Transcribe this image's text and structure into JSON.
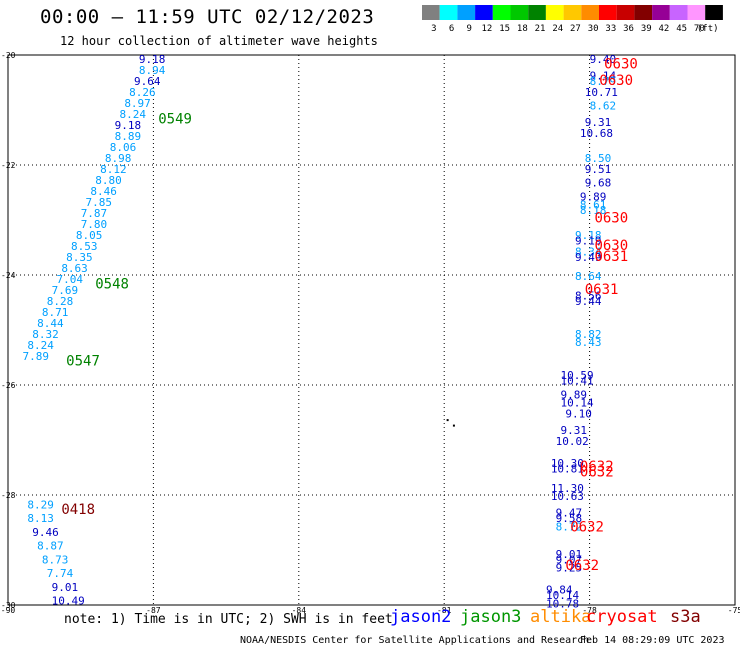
{
  "header": {
    "title": "00:00 – 11:59 UTC 02/12/2023",
    "subtitle": "12 hour collection of altimeter wave heights"
  },
  "legend": {
    "unit": "(ft)",
    "bins": [
      {
        "label": "3",
        "color": "#808080"
      },
      {
        "label": "6",
        "color": "#00ffff"
      },
      {
        "label": "9",
        "color": "#00a0ff"
      },
      {
        "label": "12",
        "color": "#0000ff"
      },
      {
        "label": "15",
        "color": "#00ff00"
      },
      {
        "label": "18",
        "color": "#00c800"
      },
      {
        "label": "21",
        "color": "#008200"
      },
      {
        "label": "24",
        "color": "#ffff00"
      },
      {
        "label": "27",
        "color": "#ffc800"
      },
      {
        "label": "30",
        "color": "#ff8c00"
      },
      {
        "label": "33",
        "color": "#ff0000"
      },
      {
        "label": "36",
        "color": "#c80000"
      },
      {
        "label": "39",
        "color": "#820000"
      },
      {
        "label": "42",
        "color": "#960096"
      },
      {
        "label": "45",
        "color": "#c864ff"
      },
      {
        "label": "70",
        "color": "#ff96ff"
      },
      {
        "label": "",
        "color": "#000000"
      }
    ]
  },
  "footer": {
    "note": "note: 1) Time is in UTC; 2) SWH is in feet",
    "credit": "NOAA/NESDIS Center for Satellite Applications and Research",
    "timestamp": "Feb 14 08:29:09 UTC 2023",
    "satellites": [
      {
        "name": "jason2",
        "color": "#0000ff"
      },
      {
        "name": "jason3",
        "color": "#009600"
      },
      {
        "name": "altika",
        "color": "#ff8c00"
      },
      {
        "name": "cryosat",
        "color": "#ff0000"
      },
      {
        "name": "s3a",
        "color": "#820000"
      }
    ]
  },
  "chart_data": {
    "type": "scatter",
    "xlim": [
      -90,
      -75
    ],
    "ylim": [
      -30,
      -20
    ],
    "xticks": [
      "-90",
      "-87",
      "-84",
      "-81",
      "-78",
      "-75"
    ],
    "yticks": [
      "-20",
      "-22",
      "-24",
      "-26",
      "-28",
      "-30"
    ],
    "grid": true,
    "colors": {
      "lblue": "#00a0ff",
      "dblue": "#0000c0",
      "green": "#008200",
      "red": "#ff0000",
      "maroon": "#820000",
      "black": "#000000"
    },
    "points": [
      {
        "x": -87.3,
        "y": -20.07,
        "v": "9.18",
        "c": "dblue"
      },
      {
        "x": -87.3,
        "y": -20.27,
        "v": "8.94",
        "c": "lblue"
      },
      {
        "x": -87.4,
        "y": -20.47,
        "v": "9.64",
        "c": "dblue"
      },
      {
        "x": -87.5,
        "y": -20.67,
        "v": "8.26",
        "c": "lblue"
      },
      {
        "x": -87.6,
        "y": -20.87,
        "v": "8.97",
        "c": "lblue"
      },
      {
        "x": -87.7,
        "y": -21.07,
        "v": "8.24",
        "c": "lblue"
      },
      {
        "x": -87.8,
        "y": -21.27,
        "v": "9.18",
        "c": "dblue"
      },
      {
        "x": -87.8,
        "y": -21.47,
        "v": "8.89",
        "c": "lblue"
      },
      {
        "x": -87.9,
        "y": -21.67,
        "v": "8.06",
        "c": "lblue"
      },
      {
        "x": -88.0,
        "y": -21.87,
        "v": "8.98",
        "c": "lblue"
      },
      {
        "x": -88.1,
        "y": -22.07,
        "v": "8.12",
        "c": "lblue"
      },
      {
        "x": -88.2,
        "y": -22.27,
        "v": "8.80",
        "c": "lblue"
      },
      {
        "x": -88.3,
        "y": -22.47,
        "v": "8.46",
        "c": "lblue"
      },
      {
        "x": -88.4,
        "y": -22.67,
        "v": "7.85",
        "c": "lblue"
      },
      {
        "x": -88.5,
        "y": -22.87,
        "v": "7.87",
        "c": "lblue"
      },
      {
        "x": -88.5,
        "y": -23.07,
        "v": "7.80",
        "c": "lblue"
      },
      {
        "x": -88.6,
        "y": -23.27,
        "v": "8.05",
        "c": "lblue"
      },
      {
        "x": -88.7,
        "y": -23.47,
        "v": "8.53",
        "c": "lblue"
      },
      {
        "x": -88.8,
        "y": -23.67,
        "v": "8.35",
        "c": "lblue"
      },
      {
        "x": -88.9,
        "y": -23.87,
        "v": "8.63",
        "c": "lblue"
      },
      {
        "x": -89.0,
        "y": -24.07,
        "v": "7.04",
        "c": "lblue"
      },
      {
        "x": -89.1,
        "y": -24.27,
        "v": "7.69",
        "c": "lblue"
      },
      {
        "x": -89.2,
        "y": -24.47,
        "v": "8.28",
        "c": "lblue"
      },
      {
        "x": -89.3,
        "y": -24.67,
        "v": "8.71",
        "c": "lblue"
      },
      {
        "x": -89.4,
        "y": -24.87,
        "v": "8.44",
        "c": "lblue"
      },
      {
        "x": -89.5,
        "y": -25.07,
        "v": "8.32",
        "c": "lblue"
      },
      {
        "x": -89.6,
        "y": -25.27,
        "v": "8.24",
        "c": "lblue"
      },
      {
        "x": -89.7,
        "y": -25.47,
        "v": "7.89",
        "c": "lblue"
      },
      {
        "x": -89.6,
        "y": -28.17,
        "v": "8.29",
        "c": "lblue"
      },
      {
        "x": -89.6,
        "y": -28.42,
        "v": "8.13",
        "c": "lblue"
      },
      {
        "x": -89.5,
        "y": -28.67,
        "v": "9.46",
        "c": "dblue"
      },
      {
        "x": -89.4,
        "y": -28.92,
        "v": "8.87",
        "c": "lblue"
      },
      {
        "x": -89.3,
        "y": -29.17,
        "v": "8.73",
        "c": "lblue"
      },
      {
        "x": -89.2,
        "y": -29.42,
        "v": "7.74",
        "c": "lblue"
      },
      {
        "x": -89.1,
        "y": -29.67,
        "v": "9.01",
        "c": "dblue"
      },
      {
        "x": -89.1,
        "y": -29.92,
        "v": "10.49",
        "c": "dblue"
      },
      {
        "x": -78.0,
        "y": -20.07,
        "v": "9.40",
        "c": "dblue"
      },
      {
        "x": -78.0,
        "y": -20.37,
        "v": "9.14",
        "c": "dblue"
      },
      {
        "x": -78.0,
        "y": -20.47,
        "v": "8.79",
        "c": "lblue"
      },
      {
        "x": -78.1,
        "y": -20.67,
        "v": "10.71",
        "c": "dblue"
      },
      {
        "x": -78.0,
        "y": -20.92,
        "v": "8.62",
        "c": "lblue"
      },
      {
        "x": -78.1,
        "y": -21.22,
        "v": "9.31",
        "c": "dblue"
      },
      {
        "x": -78.2,
        "y": -21.42,
        "v": "10.68",
        "c": "dblue"
      },
      {
        "x": -78.1,
        "y": -21.87,
        "v": "8.50",
        "c": "lblue"
      },
      {
        "x": -78.1,
        "y": -22.07,
        "v": "9.51",
        "c": "dblue"
      },
      {
        "x": -78.1,
        "y": -22.32,
        "v": "9.68",
        "c": "dblue"
      },
      {
        "x": -78.2,
        "y": -22.57,
        "v": "9.89",
        "c": "dblue"
      },
      {
        "x": -78.2,
        "y": -22.72,
        "v": "8.61",
        "c": "lblue"
      },
      {
        "x": -78.2,
        "y": -22.82,
        "v": "8.18",
        "c": "lblue"
      },
      {
        "x": -78.3,
        "y": -23.27,
        "v": "9.18",
        "c": "lblue"
      },
      {
        "x": -78.3,
        "y": -23.37,
        "v": "9.19",
        "c": "dblue"
      },
      {
        "x": -78.3,
        "y": -23.57,
        "v": "8.34",
        "c": "lblue"
      },
      {
        "x": -78.3,
        "y": -23.67,
        "v": "9.49",
        "c": "dblue"
      },
      {
        "x": -78.3,
        "y": -24.02,
        "v": "8.64",
        "c": "lblue"
      },
      {
        "x": -78.3,
        "y": -24.37,
        "v": "8.56",
        "c": "dblue"
      },
      {
        "x": -78.3,
        "y": -24.47,
        "v": "9.44",
        "c": "dblue"
      },
      {
        "x": -78.3,
        "y": -25.07,
        "v": "8.82",
        "c": "lblue"
      },
      {
        "x": -78.3,
        "y": -25.22,
        "v": "8.43",
        "c": "lblue"
      },
      {
        "x": -78.6,
        "y": -25.82,
        "v": "10.59",
        "c": "dblue"
      },
      {
        "x": -78.6,
        "y": -25.92,
        "v": "10.41",
        "c": "dblue"
      },
      {
        "x": -78.6,
        "y": -26.17,
        "v": "9.89",
        "c": "dblue"
      },
      {
        "x": -78.6,
        "y": -26.32,
        "v": "10.14",
        "c": "dblue"
      },
      {
        "x": -78.5,
        "y": -26.52,
        "v": "9.10",
        "c": "dblue"
      },
      {
        "x": -78.6,
        "y": -26.82,
        "v": "9.31",
        "c": "dblue"
      },
      {
        "x": -78.7,
        "y": -27.02,
        "v": "10.02",
        "c": "dblue"
      },
      {
        "x": -78.8,
        "y": -27.42,
        "v": "10.30",
        "c": "dblue"
      },
      {
        "x": -78.8,
        "y": -27.52,
        "v": "10.81",
        "c": "dblue"
      },
      {
        "x": -78.8,
        "y": -27.87,
        "v": "11.30",
        "c": "dblue"
      },
      {
        "x": -78.8,
        "y": -28.02,
        "v": "10.63",
        "c": "dblue"
      },
      {
        "x": -78.7,
        "y": -28.32,
        "v": "9.47",
        "c": "dblue"
      },
      {
        "x": -78.7,
        "y": -28.42,
        "v": "9.58",
        "c": "dblue"
      },
      {
        "x": -78.7,
        "y": -28.57,
        "v": "8.72",
        "c": "lblue"
      },
      {
        "x": -78.7,
        "y": -29.07,
        "v": "9.01",
        "c": "dblue"
      },
      {
        "x": -78.7,
        "y": -29.17,
        "v": "9.07",
        "c": "dblue"
      },
      {
        "x": -78.7,
        "y": -29.32,
        "v": "9.25",
        "c": "dblue"
      },
      {
        "x": -78.9,
        "y": -29.72,
        "v": "9.84",
        "c": "dblue"
      },
      {
        "x": -78.9,
        "y": -29.82,
        "v": "10.14",
        "c": "dblue"
      },
      {
        "x": -78.9,
        "y": -29.97,
        "v": "10.78",
        "c": "dblue"
      }
    ],
    "annotations": [
      {
        "x": -86.9,
        "y": -21.15,
        "t": "0549",
        "c": "green"
      },
      {
        "x": -88.2,
        "y": -24.15,
        "t": "0548",
        "c": "green"
      },
      {
        "x": -88.8,
        "y": -25.55,
        "t": "0547",
        "c": "green"
      },
      {
        "x": -88.9,
        "y": -28.25,
        "t": "0418",
        "c": "maroon"
      },
      {
        "x": -77.7,
        "y": -20.15,
        "t": "0630",
        "c": "red"
      },
      {
        "x": -77.8,
        "y": -20.45,
        "t": "0630",
        "c": "red"
      },
      {
        "x": -77.9,
        "y": -22.95,
        "t": "0630",
        "c": "red"
      },
      {
        "x": -77.9,
        "y": -23.45,
        "t": "0630",
        "c": "red"
      },
      {
        "x": -77.9,
        "y": -23.65,
        "t": "0631",
        "c": "red"
      },
      {
        "x": -78.1,
        "y": -24.25,
        "t": "0631",
        "c": "red"
      },
      {
        "x": -78.2,
        "y": -27.47,
        "t": "0632",
        "c": "red"
      },
      {
        "x": -78.2,
        "y": -27.57,
        "t": "0632",
        "c": "red"
      },
      {
        "x": -78.4,
        "y": -28.57,
        "t": "0632",
        "c": "red"
      },
      {
        "x": -78.5,
        "y": -29.27,
        "t": "0632",
        "c": "red"
      }
    ],
    "marks": [
      {
        "x": -80.95,
        "y": -26.62
      },
      {
        "x": -80.82,
        "y": -26.72
      }
    ]
  }
}
